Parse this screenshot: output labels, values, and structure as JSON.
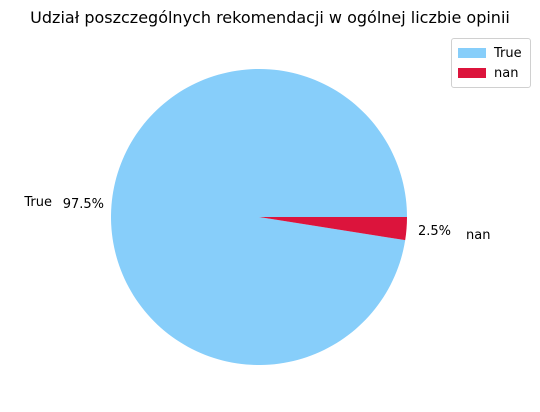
{
  "chart_data": {
    "type": "pie",
    "title": "Udział poszczególnych rekomendacji w ogólnej liczbie opinii",
    "slices": [
      {
        "label": "True",
        "value": 97.5,
        "pct_label": "97.5%",
        "color": "#87CEFA"
      },
      {
        "label": "nan",
        "value": 2.5,
        "pct_label": "2.5%",
        "color": "#DC143C"
      }
    ],
    "legend": {
      "placement": "top-right",
      "entries": [
        "True",
        "nan"
      ]
    }
  }
}
